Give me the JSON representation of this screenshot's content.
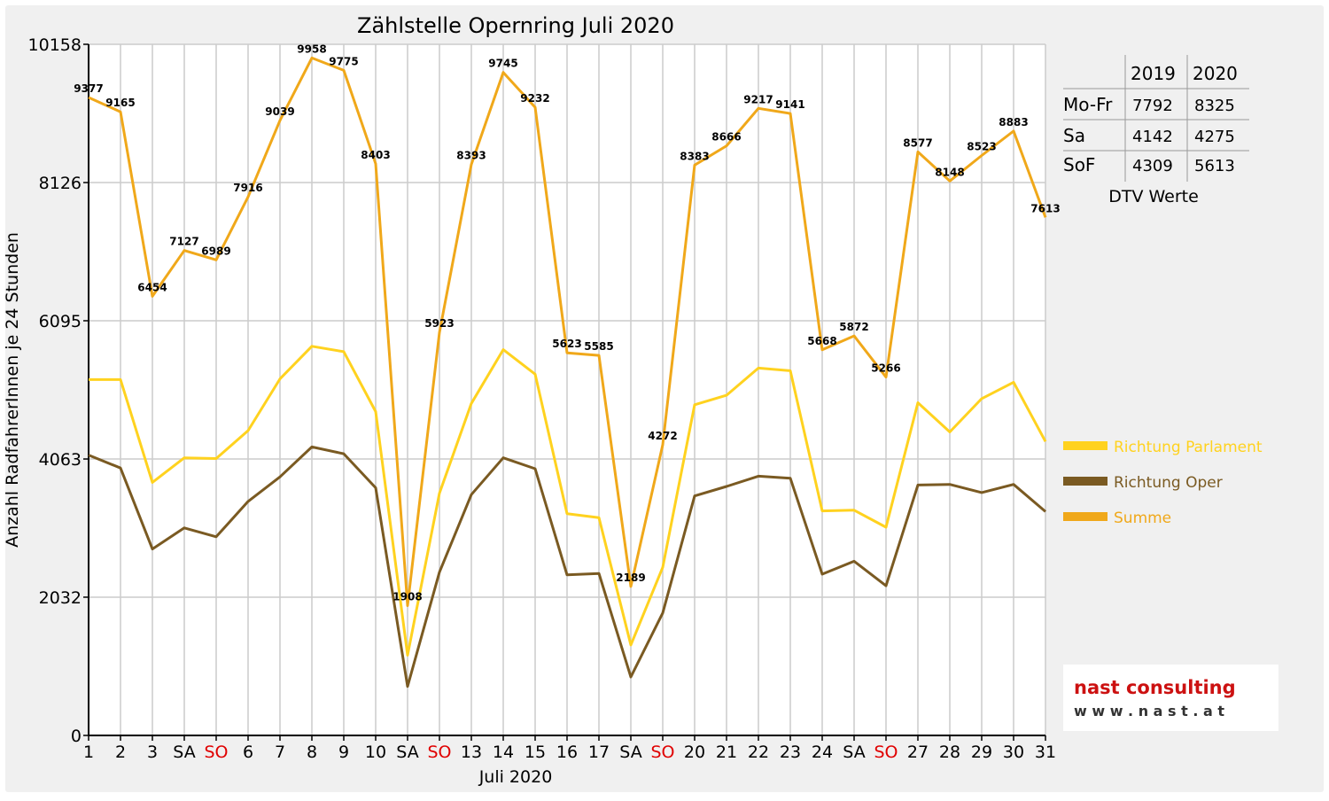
{
  "chart_data": {
    "type": "line",
    "title": "Zählstelle Opernring Juli 2020",
    "xlabel": "Juli 2020",
    "ylabel": "Anzahl RadfahrerInnen je 24 Stunden",
    "x": [
      "1",
      "2",
      "3",
      "SA",
      "SO",
      "6",
      "7",
      "8",
      "9",
      "10",
      "SA",
      "SO",
      "13",
      "14",
      "15",
      "16",
      "17",
      "SA",
      "SO",
      "20",
      "21",
      "22",
      "23",
      "24",
      "SA",
      "SO",
      "27",
      "28",
      "29",
      "30",
      "31"
    ],
    "weekend_labels": [
      "SA",
      "SO"
    ],
    "sunday_label": "SO",
    "ylim": [
      0,
      10158
    ],
    "yticks": [
      "0",
      "2032",
      "4063",
      "6095",
      "8126",
      "10158"
    ],
    "grid": true,
    "legend_position": "right",
    "series": [
      {
        "name": "Richtung Parlament",
        "color": "#ffd21f",
        "values": [
          5230,
          5230,
          3720,
          4080,
          4070,
          4480,
          5240,
          5720,
          5640,
          4760,
          1180,
          3560,
          4880,
          5670,
          5310,
          3260,
          3200,
          1330,
          2470,
          4860,
          5000,
          5400,
          5360,
          3300,
          3310,
          3060,
          4890,
          4460,
          4950,
          5190,
          4320
        ]
      },
      {
        "name": "Richtung Oper",
        "color": "#7a5a22",
        "values": [
          4120,
          3930,
          2740,
          3050,
          2920,
          3440,
          3800,
          4240,
          4140,
          3640,
          720,
          2400,
          3540,
          4080,
          3920,
          2360,
          2380,
          860,
          1800,
          3520,
          3660,
          3810,
          3780,
          2370,
          2560,
          2200,
          3680,
          3690,
          3570,
          3690,
          3290
        ]
      },
      {
        "name": "Summe",
        "color": "#f0a81a",
        "values": [
          9377,
          9165,
          6454,
          7127,
          6989,
          7916,
          9039,
          9958,
          9775,
          8403,
          1908,
          5923,
          8393,
          9745,
          9232,
          5623,
          5585,
          2189,
          4272,
          8383,
          8666,
          9217,
          9141,
          5668,
          5872,
          5266,
          8577,
          8148,
          8523,
          8883,
          7613
        ],
        "labels": [
          "9377",
          "9165",
          "6454",
          "7127",
          "6989",
          "7916",
          "9039",
          "9958",
          "9775",
          "8403",
          "1908",
          "5923",
          "8393",
          "9745",
          "9232",
          "5623",
          "5585",
          "2189",
          "4272",
          "8383",
          "8666",
          "9217",
          "9141",
          "5668",
          "5872",
          "5266",
          "8577",
          "8148",
          "8523",
          "8883",
          "7613"
        ]
      }
    ]
  },
  "dtv_table": {
    "headers": [
      "",
      "2019",
      "2020"
    ],
    "rows": [
      {
        "label": "Mo-Fr",
        "v2019": "7792",
        "v2020": "8325"
      },
      {
        "label": "Sa",
        "v2019": "4142",
        "v2020": "4275"
      },
      {
        "label": "SoF",
        "v2019": "4309",
        "v2020": "5613"
      }
    ],
    "caption": "DTV Werte"
  },
  "logo": {
    "name": "nast consulting",
    "url": "w w w . n a s t . a t"
  },
  "colors": {
    "background": "#f0f0f0",
    "plot_bg": "#ffffff",
    "grid": "#cccccc",
    "sunday": "#e00000",
    "logo_red": "#cc1111"
  }
}
